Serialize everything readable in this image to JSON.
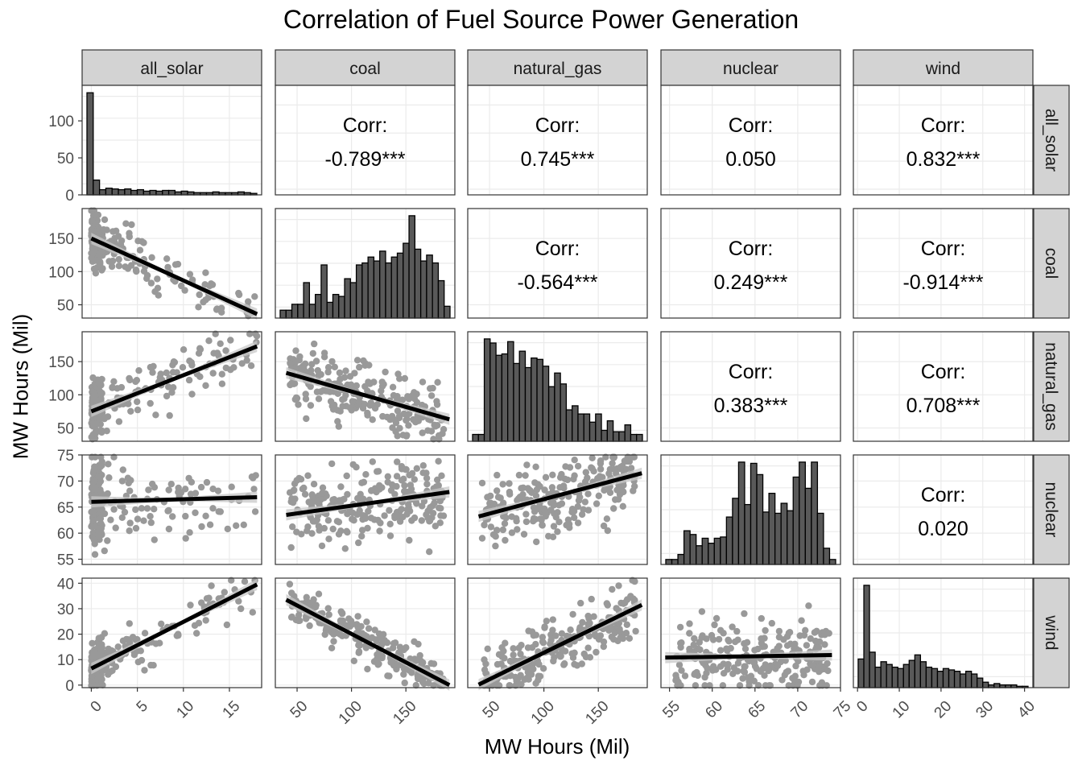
{
  "title": "Correlation of Fuel Source Power Generation",
  "xlabel": "MW Hours (Mil)",
  "ylabel": "MW Hours (Mil)",
  "colors": {
    "hist_fill": "#595959",
    "points": "#999999",
    "line": "#000000",
    "ci_band": "#c8c8c8",
    "strip": "#d3d3d3",
    "grid": "#ebebeb"
  },
  "chart_data": {
    "type": "scatter",
    "variables": [
      "all_solar",
      "coal",
      "natural_gas",
      "nuclear",
      "wind"
    ],
    "panel_ranges": {
      "all_solar": [
        -1,
        18.5
      ],
      "coal": [
        30,
        195
      ],
      "natural_gas": [
        30,
        195
      ],
      "nuclear": [
        54,
        75
      ],
      "wind": [
        -1,
        42
      ]
    },
    "ticks": {
      "all_solar": [
        0,
        5,
        10,
        15
      ],
      "coal": [
        50,
        100,
        150
      ],
      "natural_gas": [
        50,
        100,
        150
      ],
      "nuclear": [
        55,
        60,
        65,
        70,
        75
      ],
      "wind": [
        0,
        10,
        20,
        30,
        40
      ]
    },
    "corr_label": "Corr:",
    "correlations": [
      {
        "row": "all_solar",
        "col": "coal",
        "value": "-0.789***"
      },
      {
        "row": "all_solar",
        "col": "natural_gas",
        "value": "0.745***"
      },
      {
        "row": "all_solar",
        "col": "nuclear",
        "value": "0.050"
      },
      {
        "row": "all_solar",
        "col": "wind",
        "value": "0.832***"
      },
      {
        "row": "coal",
        "col": "natural_gas",
        "value": "-0.564***"
      },
      {
        "row": "coal",
        "col": "nuclear",
        "value": "0.249***"
      },
      {
        "row": "coal",
        "col": "wind",
        "value": "-0.914***"
      },
      {
        "row": "natural_gas",
        "col": "nuclear",
        "value": "0.383***"
      },
      {
        "row": "natural_gas",
        "col": "wind",
        "value": "0.708***"
      },
      {
        "row": "nuclear",
        "col": "wind",
        "value": "0.020"
      }
    ],
    "histograms": {
      "all_solar": {
        "y_ticks": [
          0,
          50,
          100
        ],
        "y_max": 148,
        "counts": [
          138,
          20,
          7,
          9,
          8,
          7,
          8,
          6,
          7,
          5,
          6,
          5,
          6,
          6,
          4,
          5,
          4,
          3,
          3,
          3,
          4,
          3,
          3,
          3,
          4,
          3,
          2
        ]
      },
      "coal": {
        "counts": [
          4,
          4,
          7,
          7,
          18,
          7,
          12,
          27,
          8,
          12,
          11,
          20,
          18,
          27,
          28,
          31,
          29,
          34,
          28,
          31,
          33,
          38,
          52,
          35,
          29,
          32,
          28,
          19,
          6
        ]
      },
      "natural_gas": {
        "counts": [
          5,
          5,
          75,
          72,
          63,
          64,
          73,
          57,
          66,
          54,
          61,
          60,
          55,
          40,
          50,
          42,
          23,
          26,
          20,
          20,
          14,
          20,
          8,
          15,
          7,
          7,
          12,
          5,
          5
        ]
      },
      "nuclear": {
        "counts": [
          4,
          4,
          8,
          27,
          24,
          15,
          21,
          17,
          21,
          22,
          38,
          53,
          82,
          48,
          81,
          72,
          42,
          57,
          41,
          49,
          43,
          70,
          82,
          61,
          82,
          41,
          13,
          4
        ]
      },
      "wind": {
        "counts": [
          21,
          75,
          26,
          15,
          19,
          17,
          15,
          14,
          17,
          20,
          24,
          19,
          15,
          14,
          12,
          14,
          13,
          12,
          10,
          12,
          10,
          7,
          4,
          2,
          3,
          2,
          2,
          2,
          1,
          1
        ]
      }
    },
    "regressions": [
      {
        "x": "all_solar",
        "y": "coal",
        "x_range": [
          0,
          18
        ],
        "y_range": [
          150,
          36
        ]
      },
      {
        "x": "all_solar",
        "y": "natural_gas",
        "x_range": [
          0,
          18
        ],
        "y_range": [
          75,
          173
        ]
      },
      {
        "x": "all_solar",
        "y": "nuclear",
        "x_range": [
          0,
          18
        ],
        "y_range": [
          66,
          66.9
        ]
      },
      {
        "x": "all_solar",
        "y": "wind",
        "x_range": [
          0,
          18
        ],
        "y_range": [
          6.5,
          39.5
        ]
      },
      {
        "x": "coal",
        "y": "natural_gas",
        "x_range": [
          40,
          190
        ],
        "y_range": [
          133,
          63
        ]
      },
      {
        "x": "coal",
        "y": "nuclear",
        "x_range": [
          40,
          190
        ],
        "y_range": [
          63.5,
          67.9
        ]
      },
      {
        "x": "coal",
        "y": "wind",
        "x_range": [
          40,
          190
        ],
        "y_range": [
          33.5,
          0
        ]
      },
      {
        "x": "natural_gas",
        "y": "nuclear",
        "x_range": [
          40,
          190
        ],
        "y_range": [
          63.2,
          71.5
        ]
      },
      {
        "x": "natural_gas",
        "y": "wind",
        "x_range": [
          40,
          190
        ],
        "y_range": [
          0.2,
          31.5
        ]
      },
      {
        "x": "nuclear",
        "y": "wind",
        "x_range": [
          54.5,
          74
        ],
        "y_range": [
          10.8,
          11.8
        ]
      }
    ]
  }
}
